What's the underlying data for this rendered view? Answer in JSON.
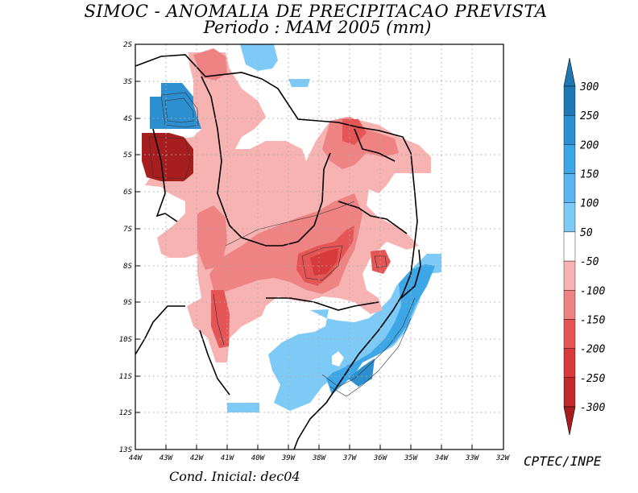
{
  "header": {
    "title": "SIMOC -  ANOMALIA DE PRECIPITACAO PREVISTA",
    "subtitle": "Periodo : MAM 2005 (mm)"
  },
  "map": {
    "lat_labels": [
      "2S",
      "3S",
      "4S",
      "5S",
      "6S",
      "7S",
      "8S",
      "9S",
      "10S",
      "11S",
      "12S",
      "13S"
    ],
    "lon_labels": [
      "44W",
      "43W",
      "42W",
      "41W",
      "40W",
      "39W",
      "38W",
      "37W",
      "36W",
      "35W",
      "34W",
      "33W",
      "32W"
    ]
  },
  "colorbar": {
    "labels": [
      "300",
      "250",
      "200",
      "150",
      "100",
      "50",
      "-50",
      "-100",
      "-150",
      "-200",
      "-250",
      "-300"
    ],
    "colors": [
      "#1f78b4",
      "#2c8fd0",
      "#3ca6e6",
      "#5ab6f0",
      "#7ecaf7",
      "#ffffff",
      "#f7b2b2",
      "#ef8383",
      "#e65555",
      "#d63a3a",
      "#c02a2a",
      "#a81e1e"
    ]
  },
  "footer": {
    "credit": "CPTEC/INPE",
    "condition": "Cond. Inicial: dec04"
  }
}
